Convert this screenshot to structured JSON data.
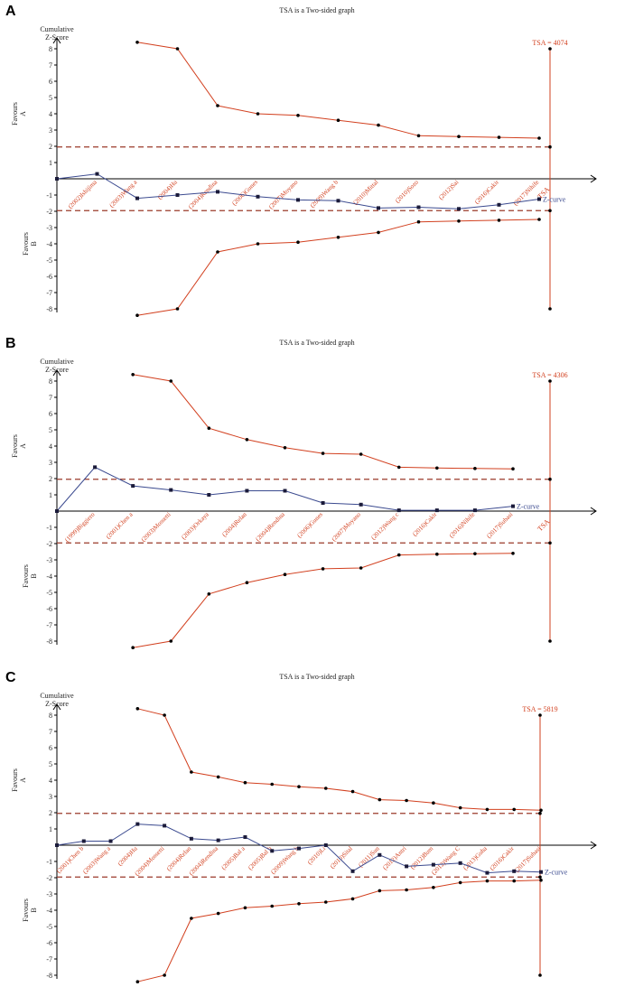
{
  "figure": {
    "panel_letters": [
      "A",
      "B",
      "C"
    ]
  },
  "colors": {
    "boundary": "#d2401f",
    "zcurve": "#3b4a8f",
    "reference": "#9b3a2a",
    "axis": "#000000"
  },
  "chart_data": [
    {
      "panel": "A",
      "type": "line",
      "title": "TSA is a Two-sided graph",
      "ylabel": "Cumulative\nZ-Score",
      "ylabel_lines": [
        "Cumulative",
        "Z-Score"
      ],
      "ylim": [
        -8,
        8
      ],
      "yticks": [
        -8,
        -7,
        -6,
        -5,
        -4,
        -3,
        -2,
        -1,
        1,
        2,
        3,
        4,
        5,
        6,
        7,
        8
      ],
      "favours_a": "Favours A",
      "favours_b": "Favours B",
      "tsa_label": "TSA = 4074",
      "tsa_axis_label": "TSA",
      "zcurve_label": "Z-curve",
      "conventional_boundary": 1.96,
      "n_studies": 12,
      "studies": [
        "(2002)Ishijima",
        "(2003)Wang a",
        "(2004)Hu",
        "(2004)Rendina",
        "(2006)Gunes",
        "(2007)Moyano",
        "(2009)Wang b",
        "(2010)Mittal",
        "(2010)Sozo",
        "(2012)Sai",
        "(2016)Cakir",
        "(2017)Nihife"
      ],
      "series": [
        {
          "name": "Z-curve",
          "x": [
            0,
            1,
            2,
            3,
            4,
            5,
            6,
            7,
            8,
            9,
            10,
            11,
            12
          ],
          "values": [
            0,
            0.3,
            -1.2,
            -1.0,
            -0.8,
            -1.1,
            -1.3,
            -1.35,
            -1.8,
            -1.75,
            -1.85,
            -1.6,
            -1.25
          ]
        },
        {
          "name": "Upper monitoring boundary",
          "x": [
            2,
            3,
            4,
            5,
            6,
            7,
            8,
            9,
            10,
            11,
            12
          ],
          "values": [
            8.4,
            8.0,
            4.5,
            4.0,
            3.9,
            3.6,
            3.3,
            2.65,
            2.6,
            2.55,
            2.5
          ]
        },
        {
          "name": "Lower monitoring boundary",
          "x": [
            2,
            3,
            4,
            5,
            6,
            7,
            8,
            9,
            10,
            11,
            12
          ],
          "values": [
            -8.4,
            -8.0,
            -4.5,
            -4.0,
            -3.9,
            -3.6,
            -3.3,
            -2.65,
            -2.6,
            -2.55,
            -2.5
          ]
        }
      ]
    },
    {
      "panel": "B",
      "type": "line",
      "title": "TSA is a Two-sided graph",
      "ylabel": "Cumulative\nZ-Score",
      "ylabel_lines": [
        "Cumulative",
        "Z-Score"
      ],
      "ylim": [
        -8,
        8
      ],
      "yticks": [
        -8,
        -7,
        -6,
        -5,
        -4,
        -3,
        -2,
        -1,
        1,
        2,
        3,
        4,
        5,
        6,
        7,
        8
      ],
      "favours_a": "Favours A",
      "favours_b": "Favours B",
      "tsa_label": "TSA = 4306",
      "tsa_axis_label": "TSA",
      "zcurve_label": "Z-curve",
      "conventional_boundary": 1.96,
      "n_studies": 12,
      "studies": [
        "(1999)Biggiero",
        "(2001)Chen a",
        "(2003)Mossetti",
        "(2003)Orkaya",
        "(2004)Relan",
        "(2004)Rendina",
        "(2006)Gunes",
        "(2007)Moyano",
        "(2012)Wang c",
        "(2016)Cakir",
        "(2016)Nihife",
        "(2017)Subasi"
      ],
      "series": [
        {
          "name": "Z-curve",
          "x": [
            0,
            1,
            2,
            3,
            4,
            5,
            6,
            7,
            8,
            9,
            10,
            11,
            12
          ],
          "values": [
            0,
            2.7,
            1.55,
            1.3,
            1.0,
            1.25,
            1.25,
            0.5,
            0.4,
            0.05,
            0.05,
            0.05,
            0.3
          ]
        },
        {
          "name": "Upper monitoring boundary",
          "x": [
            2,
            3,
            4,
            5,
            6,
            7,
            8,
            9,
            10,
            11,
            12
          ],
          "values": [
            8.4,
            8.0,
            5.1,
            4.4,
            3.9,
            3.55,
            3.5,
            2.7,
            2.65,
            2.62,
            2.6
          ]
        },
        {
          "name": "Lower monitoring boundary",
          "x": [
            2,
            3,
            4,
            5,
            6,
            7,
            8,
            9,
            10,
            11,
            12
          ],
          "values": [
            -8.4,
            -8.0,
            -5.1,
            -4.4,
            -3.9,
            -3.55,
            -3.5,
            -2.7,
            -2.65,
            -2.62,
            -2.6
          ]
        }
      ]
    },
    {
      "panel": "C",
      "type": "line",
      "title": "TSA is a Two-sided graph",
      "ylabel": "Cumulative\nZ-Score",
      "ylabel_lines": [
        "Cumulative",
        "Z-Score"
      ],
      "ylim": [
        -8,
        8
      ],
      "yticks": [
        -8,
        -7,
        -6,
        -5,
        -4,
        -3,
        -2,
        -1,
        1,
        2,
        3,
        4,
        5,
        6,
        7,
        8
      ],
      "favours_a": "Favours A",
      "favours_b": "Favours B",
      "tsa_label": "TSA = 5819",
      "tsa_axis_label": "TSA",
      "zcurve_label": "Z-curve",
      "conventional_boundary": 1.96,
      "n_studies": 18,
      "studies": [
        "(2001)Chen b",
        "(2003)Wang a",
        "(2004)Hu",
        "(2004)Mossetti",
        "(2004)Relan",
        "(2004)Rendina",
        "(2005)Bal a",
        "(2005)Bal b",
        "(2009)Wang b",
        "(2010)Li",
        "(2010)Sital",
        "(2011)Sun",
        "(2012)Antri",
        "(2012)Bum",
        "(2012)Wang C",
        "(2013)Guha",
        "(2016)Cakir",
        "(2017)Subasi"
      ],
      "series": [
        {
          "name": "Z-curve",
          "x": [
            0,
            1,
            2,
            3,
            4,
            5,
            6,
            7,
            8,
            9,
            10,
            11,
            12,
            13,
            14,
            15,
            16,
            17,
            18
          ],
          "values": [
            0,
            0.25,
            0.25,
            1.3,
            1.2,
            0.4,
            0.3,
            0.5,
            -0.35,
            -0.2,
            0,
            -1.6,
            -0.6,
            -1.3,
            -1.2,
            -1.1,
            -1.7,
            -1.6,
            -1.65
          ]
        },
        {
          "name": "Upper monitoring boundary",
          "x": [
            3,
            4,
            5,
            6,
            7,
            8,
            9,
            10,
            11,
            12,
            13,
            14,
            15,
            16,
            17,
            18
          ],
          "values": [
            8.4,
            8.0,
            4.5,
            4.2,
            3.85,
            3.75,
            3.6,
            3.5,
            3.3,
            2.8,
            2.75,
            2.6,
            2.3,
            2.2,
            2.2,
            2.15
          ]
        },
        {
          "name": "Lower monitoring boundary",
          "x": [
            3,
            4,
            5,
            6,
            7,
            8,
            9,
            10,
            11,
            12,
            13,
            14,
            15,
            16,
            17,
            18
          ],
          "values": [
            -8.4,
            -8.0,
            -4.5,
            -4.2,
            -3.85,
            -3.75,
            -3.6,
            -3.5,
            -3.3,
            -2.8,
            -2.75,
            -2.6,
            -2.3,
            -2.2,
            -2.2,
            -2.15
          ]
        }
      ]
    }
  ]
}
